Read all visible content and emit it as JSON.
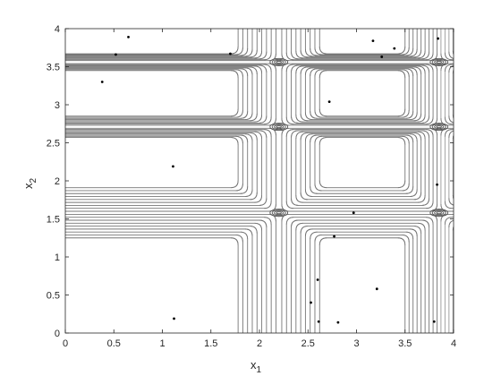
{
  "chart_data": {
    "type": "contour",
    "title": "",
    "xlabel": {
      "base": "x",
      "sub": "1"
    },
    "ylabel": {
      "base": "x",
      "sub": "2"
    },
    "xlim": [
      0,
      4
    ],
    "ylim": [
      0,
      4
    ],
    "xticks": [
      "0",
      "0.5",
      "1",
      "1.5",
      "2",
      "2.5",
      "3",
      "3.5",
      "4"
    ],
    "yticks": [
      "0",
      "0.5",
      "1",
      "1.5",
      "2",
      "2.5",
      "3",
      "3.5",
      "4"
    ],
    "grid": false,
    "line_color": "#000000",
    "contour_bands": {
      "vertical": [
        {
          "center": 2.2,
          "min_width": 0.03,
          "max_width": 0.42
        },
        {
          "center": 3.85,
          "min_width": 0.02,
          "max_width": 0.35
        }
      ],
      "horizontal": [
        {
          "center": 1.58,
          "min_width": 0.02,
          "max_width": 0.33
        },
        {
          "center": 2.71,
          "min_width": 0.02,
          "max_width": 0.14
        },
        {
          "center": 3.56,
          "min_width": 0.02,
          "max_width": 0.11
        }
      ],
      "levels": 9
    },
    "points": [
      {
        "x": 0.38,
        "y": 3.3
      },
      {
        "x": 0.52,
        "y": 3.66
      },
      {
        "x": 0.65,
        "y": 3.89
      },
      {
        "x": 1.11,
        "y": 2.19
      },
      {
        "x": 1.12,
        "y": 0.19
      },
      {
        "x": 1.7,
        "y": 3.67
      },
      {
        "x": 2.53,
        "y": 0.4
      },
      {
        "x": 2.6,
        "y": 0.7
      },
      {
        "x": 2.61,
        "y": 0.15
      },
      {
        "x": 2.72,
        "y": 3.04
      },
      {
        "x": 2.77,
        "y": 1.27
      },
      {
        "x": 2.81,
        "y": 0.14
      },
      {
        "x": 2.97,
        "y": 1.58
      },
      {
        "x": 3.17,
        "y": 3.84
      },
      {
        "x": 3.21,
        "y": 0.58
      },
      {
        "x": 3.26,
        "y": 3.63
      },
      {
        "x": 3.39,
        "y": 3.74
      },
      {
        "x": 3.8,
        "y": 0.15
      },
      {
        "x": 3.83,
        "y": 1.95
      },
      {
        "x": 3.84,
        "y": 3.87
      }
    ]
  }
}
